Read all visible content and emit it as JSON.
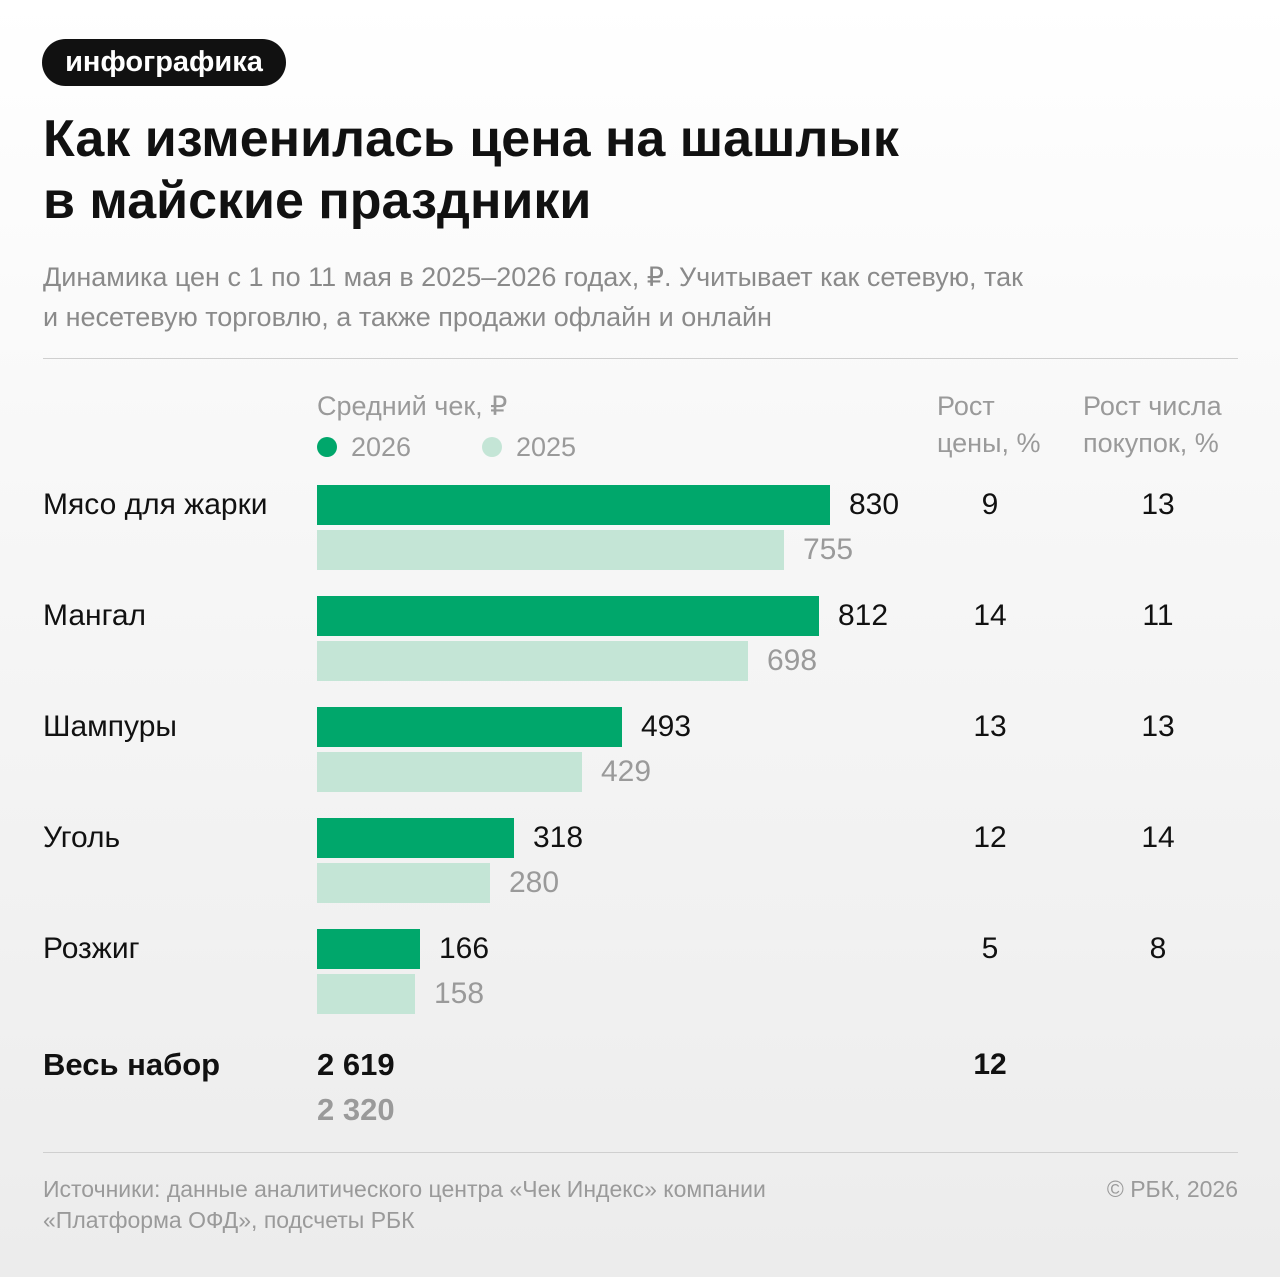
{
  "badge": "инфографика",
  "title_lines": [
    "Как изменилась цена на шашлык",
    "в майские праздники"
  ],
  "subtitle_lines": [
    "Динамика цен с 1 по 11 мая в 2025–2026 годах, ₽. Учитывает как сетевую, так",
    "и несетевую торговлю, а также продажи офлайн и онлайн"
  ],
  "headers": {
    "avg_check": "Средний чек, ₽",
    "price_growth": [
      "Рост",
      "цены, %"
    ],
    "purchase_growth": [
      "Рост числа",
      "покупок, %"
    ]
  },
  "colors": {
    "2026": "#00a76b",
    "2025": "#c4e5d6",
    "value_2025_text": "#9a9a9a"
  },
  "chart_data": {
    "type": "bar",
    "orientation": "horizontal",
    "categories": [
      "Мясо для жарки",
      "Мангал",
      "Шампуры",
      "Уголь",
      "Розжиг"
    ],
    "series": [
      {
        "name": "2026",
        "values": [
          830,
          812,
          493,
          318,
          166
        ]
      },
      {
        "name": "2025",
        "values": [
          755,
          698,
          429,
          280,
          158
        ]
      }
    ],
    "labels_2026": [
      "830",
      "812",
      "493",
      "318",
      "166"
    ],
    "labels_2025": [
      "755",
      "698",
      "429",
      "280",
      "158"
    ],
    "price_growth": [
      "9",
      "14",
      "13",
      "12",
      "5"
    ],
    "purchase_growth": [
      "13",
      "11",
      "13",
      "14",
      "8"
    ],
    "xlim": [
      0,
      830
    ],
    "grid": false,
    "legend": "top"
  },
  "total": {
    "label": "Весь набор",
    "value_2026": "2 619",
    "value_2025": "2 320",
    "price_growth": "12"
  },
  "footer": {
    "source_lines": [
      "Источники: данные аналитического центра «Чек Индекс» компании",
      "«Платформа ОФД», подсчеты РБК"
    ],
    "copyright": "© РБК, 2026"
  }
}
